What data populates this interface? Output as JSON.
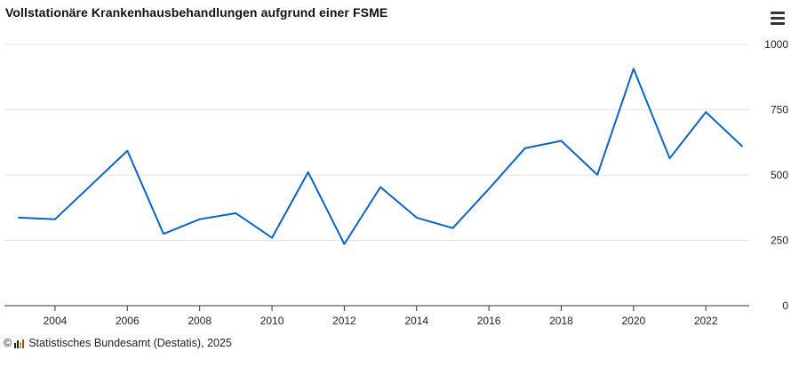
{
  "header": {
    "title": "Vollstationäre Krankenhausbehandlungen aufgrund einer FSME",
    "menu_icon": "hamburger-menu-icon"
  },
  "footer": {
    "copyright_symbol": "©",
    "logo_icon": "destatis-logo-icon",
    "source": "Statistisches Bundesamt (Destatis), 2025"
  },
  "colors": {
    "line": "#0a64c8",
    "grid": "#e6e6e6",
    "axis": "#333333"
  },
  "chart_data": {
    "type": "line",
    "title": "Vollstationäre Krankenhausbehandlungen aufgrund einer FSME",
    "xlabel": "",
    "ylabel": "",
    "x": [
      2003,
      2004,
      2005,
      2006,
      2007,
      2008,
      2009,
      2010,
      2011,
      2012,
      2013,
      2014,
      2015,
      2016,
      2017,
      2018,
      2019,
      2020,
      2021,
      2022,
      2023
    ],
    "series": [
      {
        "values": [
          337,
          331,
          462,
          593,
          275,
          331,
          354,
          260,
          511,
          236,
          454,
          337,
          297,
          447,
          603,
          631,
          501,
          907,
          564,
          741,
          611
        ]
      }
    ],
    "xlim": [
      2002.6,
      2023.2
    ],
    "ylim": [
      0,
      1000
    ],
    "xticks": [
      "2004",
      "2006",
      "2008",
      "2010",
      "2012",
      "2014",
      "2016",
      "2018",
      "2020",
      "2022"
    ],
    "yticks": [
      "0",
      "250",
      "500",
      "750",
      "1000"
    ],
    "grid": true,
    "legend": "none",
    "y_axis_position": "right"
  }
}
